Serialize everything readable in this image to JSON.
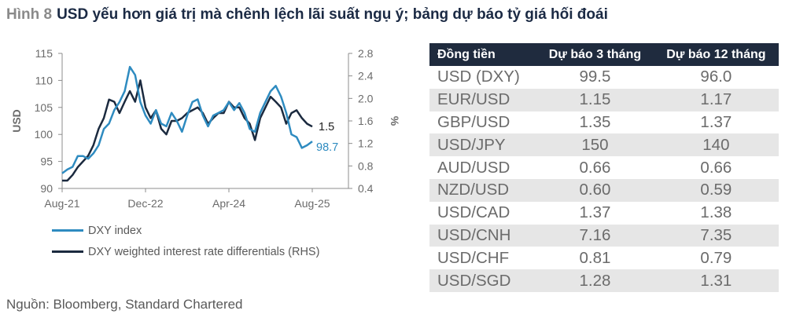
{
  "title": {
    "figure": "Hình 8",
    "text": "USD yếu hơn giá trị mà chênh lệch lãi suất ngụ ý; bảng dự báo tỷ giá hối đoái"
  },
  "chart_data": {
    "type": "line",
    "ylabel": "USD",
    "y2label": "%",
    "ylim": [
      90,
      115
    ],
    "y2lim": [
      0.4,
      2.8
    ],
    "yticks": [
      "90",
      "95",
      "100",
      "105",
      "110",
      "115"
    ],
    "y2ticks": [
      "0.4",
      "0.8",
      "1.2",
      "1.6",
      "2.0",
      "2.4",
      "2.8"
    ],
    "xticks": [
      "Aug-21",
      "Dec-22",
      "Apr-24",
      "Aug-25"
    ],
    "x_start": "2021-08",
    "x_end": "2025-08",
    "x_freq": "monthly",
    "legend_position": "bottom",
    "series": [
      {
        "name": "DXY index",
        "axis": "left",
        "color": "#2e8bc0",
        "end_label": "98.7",
        "values": [
          92.8,
          93.5,
          94,
          96,
          96,
          95.5,
          96.5,
          98,
          101,
          102,
          104.5,
          106,
          108,
          112.5,
          111,
          106,
          103.5,
          102,
          104.5,
          102,
          101.5,
          104,
          102.5,
          100.5,
          103.5,
          106,
          106.5,
          103.5,
          101.5,
          103.5,
          104,
          104.5,
          106,
          104.5,
          105.8,
          104,
          101,
          100.5,
          104,
          106,
          108,
          109,
          107,
          104,
          100,
          99.5,
          97.5,
          98,
          98.7
        ]
      },
      {
        "name": "DXY weighted interest rate differentials (RHS)",
        "axis": "right",
        "color": "#1b2a3f",
        "end_label": "1.5",
        "values": [
          0.54,
          0.54,
          0.64,
          0.78,
          0.88,
          0.98,
          1.17,
          1.46,
          1.65,
          1.98,
          1.94,
          1.74,
          1.94,
          2.13,
          1.94,
          2.32,
          1.84,
          1.65,
          1.79,
          1.46,
          1.36,
          1.6,
          1.6,
          1.65,
          1.74,
          1.79,
          1.84,
          1.74,
          1.55,
          1.65,
          1.74,
          1.74,
          1.94,
          1.84,
          1.84,
          1.65,
          1.55,
          1.26,
          1.65,
          1.84,
          2.03,
          1.94,
          1.84,
          1.55,
          1.74,
          1.79,
          1.65,
          1.55,
          1.5
        ]
      }
    ]
  },
  "table": {
    "headers": [
      "Đồng tiền",
      "Dự báo 3 tháng",
      "Dự báo 12 tháng"
    ],
    "rows": [
      [
        "USD (DXY)",
        "99.5",
        "96.0"
      ],
      [
        "EUR/USD",
        "1.15",
        "1.17"
      ],
      [
        "GBP/USD",
        "1.35",
        "1.37"
      ],
      [
        "USD/JPY",
        "150",
        "140"
      ],
      [
        "AUD/USD",
        "0.66",
        "0.66"
      ],
      [
        "NZD/USD",
        "0.60",
        "0.59"
      ],
      [
        "USD/CAD",
        "1.37",
        "1.38"
      ],
      [
        "USD/CNH",
        "7.16",
        "7.35"
      ],
      [
        "USD/CHF",
        "0.81",
        "0.79"
      ],
      [
        "USD/SGD",
        "1.28",
        "1.31"
      ]
    ]
  },
  "source": "Nguồn: Bloomberg, Standard Chartered"
}
